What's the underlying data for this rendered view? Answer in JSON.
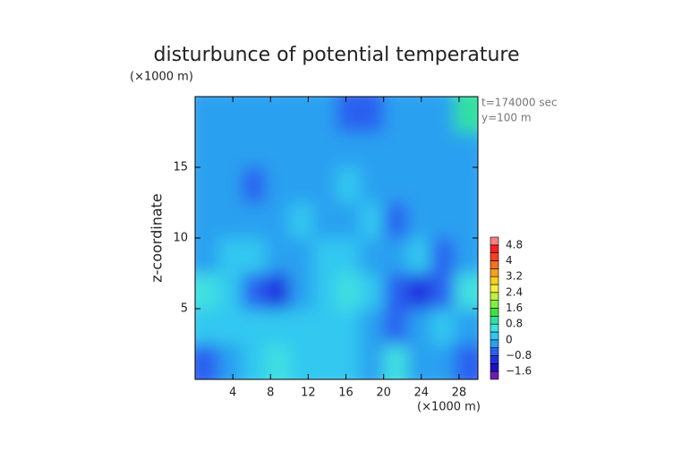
{
  "chart_data": {
    "type": "contour",
    "title": "disturbunce of potential temperature",
    "y_unit": "(×1000 m)",
    "x_unit": "(×1000 m)",
    "ylabel": "z-coordinate",
    "annotations": [
      "t=174000 sec",
      "y=100 m"
    ],
    "xlim": [
      0,
      30
    ],
    "ylim": [
      0,
      20
    ],
    "xticks": [
      4,
      8,
      12,
      16,
      20,
      24,
      28
    ],
    "yticks": [
      5,
      10,
      15
    ],
    "x": [
      1.25,
      3.75,
      6.25,
      8.75,
      11.25,
      13.75,
      16.25,
      18.75,
      21.25,
      23.75,
      26.25,
      28.75
    ],
    "y": [
      1.25,
      3.75,
      6.25,
      8.75,
      11.25,
      13.75,
      16.25,
      18.75
    ],
    "z": [
      [
        -0.6,
        -0.2,
        0.2,
        0.4,
        0.3,
        0.2,
        0.1,
        -0.2,
        0.4,
        -0.4,
        -0.2,
        -0.8
      ],
      [
        0.2,
        0.3,
        0.2,
        0.1,
        0.3,
        0.2,
        0.2,
        -0.3,
        -0.6,
        -0.3,
        0.0,
        -0.4
      ],
      [
        0.4,
        0.2,
        -0.8,
        -1.0,
        -0.4,
        0.2,
        0.5,
        0.3,
        -0.6,
        -1.2,
        -0.6,
        0.4
      ],
      [
        -0.2,
        0.1,
        0.2,
        -0.3,
        -0.2,
        0.0,
        0.1,
        -0.2,
        -0.2,
        0.1,
        -0.5,
        -0.2
      ],
      [
        -0.2,
        -0.3,
        -0.2,
        -0.2,
        0.0,
        -0.2,
        -0.2,
        0.0,
        -0.5,
        -0.2,
        -0.2,
        -0.3
      ],
      [
        -0.3,
        -0.2,
        -0.5,
        -0.2,
        -0.2,
        -0.2,
        0.0,
        -0.2,
        -0.4,
        -0.2,
        -0.2,
        -0.3
      ],
      [
        -0.2,
        -0.4,
        -0.2,
        -0.2,
        -0.3,
        -0.2,
        -0.2,
        -0.2,
        -0.2,
        -0.3,
        -0.2,
        -0.2
      ],
      [
        -0.3,
        -0.2,
        -0.2,
        -0.3,
        -0.2,
        -0.2,
        -0.5,
        -0.6,
        -0.3,
        -0.3,
        -0.2,
        0.8
      ]
    ],
    "levels": [
      -2.0,
      -1.6,
      -1.2,
      -0.8,
      -0.4,
      0,
      0.4,
      0.8,
      1.2,
      1.6,
      2.0,
      2.4,
      2.8,
      3.2,
      3.6,
      4.0,
      4.4,
      4.8,
      5.2
    ],
    "colors": [
      "#6a1fb0",
      "#2010c0",
      "#2030e0",
      "#2a60f0",
      "#2aa0f0",
      "#30c8f0",
      "#40e0e0",
      "#30e0a0",
      "#40e040",
      "#80f040",
      "#c0f040",
      "#f0f040",
      "#f8d020",
      "#f8a020",
      "#f87020",
      "#f84020",
      "#f82020",
      "#f88080"
    ],
    "colorbar_ticks": [
      {
        "value": -1.6,
        "label": "−1.6"
      },
      {
        "value": -0.8,
        "label": "−0.8"
      },
      0,
      0.8,
      1.6,
      2.4,
      3.2,
      4,
      4.8
    ]
  }
}
